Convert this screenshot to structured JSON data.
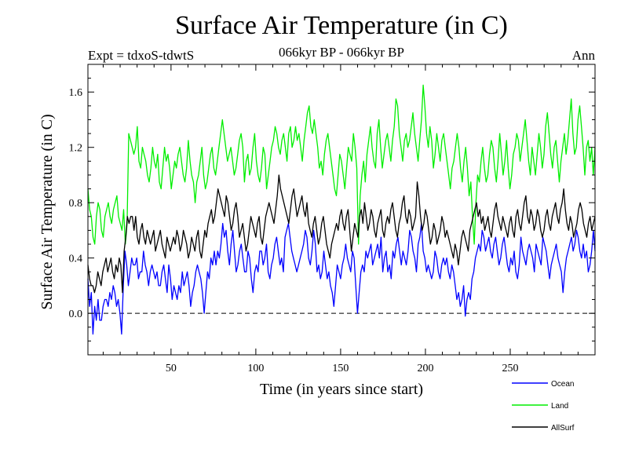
{
  "chart_data": {
    "type": "line",
    "title": "Surface Air Temperature (in C)",
    "subtitle_left": "Expt = tdxoS-tdwtS",
    "subtitle_center": "066kyr BP - 066kyr BP",
    "subtitle_right": "Ann",
    "xlabel": "Time (in years since start)",
    "ylabel": "Surface Air Temperature (in C)",
    "xlim": [
      1,
      300
    ],
    "ylim": [
      -0.3,
      1.8
    ],
    "xticks": [
      50,
      100,
      150,
      200,
      250
    ],
    "yticks": [
      -0.0,
      0.4,
      0.8,
      1.2,
      1.6
    ],
    "ytick_labels": [
      "0.0",
      "0.4",
      "0.8",
      "1.2",
      "1.6"
    ],
    "reference_line": {
      "y": 0.0,
      "style": "dashed"
    },
    "legend_placement": "bottom-right outside",
    "grid": false,
    "series": [
      {
        "name": "Ocean",
        "color": "#0000ff",
        "values": [
          0.25,
          0.05,
          0.15,
          -0.15,
          0.05,
          -0.05,
          0.1,
          -0.05,
          -0.05,
          0.05,
          0.1,
          0.1,
          0.05,
          0.15,
          0.1,
          0.2,
          0.15,
          0.05,
          0.1,
          0.0,
          -0.15,
          0.2,
          0.45,
          0.35,
          0.2,
          0.3,
          0.4,
          0.35,
          0.35,
          0.4,
          0.25,
          0.3,
          0.3,
          0.45,
          0.35,
          0.3,
          0.2,
          0.3,
          0.35,
          0.3,
          0.25,
          0.3,
          0.2,
          0.2,
          0.3,
          0.35,
          0.25,
          0.15,
          0.35,
          0.25,
          0.1,
          0.2,
          0.15,
          0.1,
          0.2,
          0.15,
          0.3,
          0.2,
          0.25,
          0.3,
          0.2,
          0.05,
          0.15,
          0.2,
          0.3,
          0.35,
          0.3,
          0.25,
          0.15,
          0.0,
          0.15,
          0.3,
          0.25,
          0.4,
          0.35,
          0.45,
          0.35,
          0.45,
          0.4,
          0.5,
          0.65,
          0.55,
          0.6,
          0.45,
          0.35,
          0.5,
          0.6,
          0.45,
          0.3,
          0.35,
          0.45,
          0.5,
          0.4,
          0.3,
          0.3,
          0.45,
          0.4,
          0.25,
          0.15,
          0.3,
          0.35,
          0.3,
          0.45,
          0.45,
          0.35,
          0.4,
          0.5,
          0.3,
          0.25,
          0.35,
          0.4,
          0.5,
          0.55,
          0.45,
          0.35,
          0.4,
          0.3,
          0.55,
          0.6,
          0.65,
          0.55,
          0.45,
          0.4,
          0.35,
          0.3,
          0.35,
          0.4,
          0.45,
          0.5,
          0.6,
          0.55,
          0.4,
          0.35,
          0.45,
          0.6,
          0.5,
          0.3,
          0.35,
          0.25,
          0.3,
          0.45,
          0.35,
          0.25,
          0.3,
          0.2,
          0.15,
          0.05,
          0.2,
          0.35,
          0.3,
          0.25,
          0.35,
          0.4,
          0.5,
          0.4,
          0.35,
          0.3,
          0.45,
          0.4,
          0.2,
          0.0,
          0.15,
          0.3,
          0.35,
          0.3,
          0.45,
          0.4,
          0.45,
          0.5,
          0.35,
          0.4,
          0.45,
          0.5,
          0.4,
          0.55,
          0.3,
          0.4,
          0.45,
          0.3,
          0.35,
          0.25,
          0.45,
          0.4,
          0.5,
          0.55,
          0.45,
          0.35,
          0.45,
          0.4,
          0.35,
          0.45,
          0.6,
          0.55,
          0.45,
          0.4,
          0.3,
          0.5,
          0.55,
          0.65,
          0.45,
          0.4,
          0.3,
          0.35,
          0.3,
          0.25,
          0.3,
          0.45,
          0.4,
          0.3,
          0.25,
          0.35,
          0.4,
          0.35,
          0.4,
          0.3,
          0.25,
          0.35,
          0.3,
          0.2,
          0.1,
          0.15,
          0.05,
          0.1,
          0.2,
          -0.02,
          0.1,
          0.15,
          0.1,
          0.25,
          0.3,
          0.4,
          0.45,
          0.5,
          0.45,
          0.6,
          0.55,
          0.45,
          0.5,
          0.55,
          0.45,
          0.4,
          0.5,
          0.55,
          0.45,
          0.35,
          0.4,
          0.5,
          0.55,
          0.45,
          0.35,
          0.3,
          0.4,
          0.35,
          0.45,
          0.3,
          0.25,
          0.35,
          0.55,
          0.45,
          0.4,
          0.35,
          0.45,
          0.5,
          0.45,
          0.4,
          0.3,
          0.5,
          0.45,
          0.4,
          0.35,
          0.55,
          0.5,
          0.45,
          0.35,
          0.25,
          0.35,
          0.4,
          0.45,
          0.5,
          0.4,
          0.35,
          0.3,
          0.15,
          0.3,
          0.4,
          0.45,
          0.5,
          0.55,
          0.45,
          0.5,
          0.6,
          0.55,
          0.45,
          0.4,
          0.5,
          0.4,
          0.45,
          0.3,
          0.35,
          0.45,
          0.6,
          0.45
        ]
      },
      {
        "name": "Land",
        "color": "#00ee00",
        "values": [
          0.9,
          0.75,
          0.7,
          0.55,
          0.5,
          0.7,
          0.8,
          0.75,
          0.6,
          0.55,
          0.7,
          0.75,
          0.8,
          0.7,
          0.65,
          0.75,
          0.8,
          0.85,
          0.7,
          0.65,
          0.6,
          0.75,
          0.5,
          0.65,
          1.3,
          1.25,
          1.2,
          1.15,
          1.2,
          1.35,
          1.1,
          1.05,
          1.2,
          1.15,
          1.1,
          1.0,
          0.95,
          1.05,
          1.2,
          1.1,
          1.05,
          1.15,
          0.95,
          0.9,
          1.05,
          1.2,
          1.1,
          1.15,
          1.05,
          0.9,
          1.0,
          1.1,
          1.05,
          1.15,
          1.2,
          1.1,
          1.0,
          0.95,
          1.05,
          1.25,
          1.1,
          1.0,
          0.95,
          0.8,
          0.95,
          1.0,
          1.1,
          1.2,
          1.0,
          0.9,
          0.95,
          1.05,
          1.15,
          1.2,
          1.05,
          1.0,
          1.1,
          1.2,
          1.3,
          1.4,
          1.3,
          1.2,
          1.1,
          1.15,
          1.2,
          1.1,
          1.0,
          1.05,
          1.15,
          1.25,
          1.3,
          1.2,
          0.95,
          1.1,
          1.15,
          1.0,
          1.05,
          1.2,
          1.3,
          1.1,
          1.0,
          0.95,
          1.05,
          1.2,
          1.15,
          0.9,
          1.0,
          1.1,
          1.2,
          1.25,
          1.35,
          1.3,
          1.2,
          1.15,
          1.25,
          1.3,
          1.2,
          1.1,
          1.3,
          1.35,
          1.2,
          1.25,
          1.35,
          1.25,
          1.3,
          1.2,
          1.1,
          1.25,
          1.35,
          1.45,
          1.5,
          1.35,
          1.3,
          1.4,
          1.3,
          1.2,
          1.05,
          1.1,
          1.0,
          1.15,
          1.25,
          1.3,
          1.2,
          1.1,
          1.0,
          0.9,
          0.85,
          1.0,
          1.15,
          1.1,
          1.0,
          0.9,
          1.05,
          1.2,
          1.15,
          1.1,
          1.3,
          1.2,
          1.05,
          0.5,
          0.85,
          1.0,
          1.1,
          0.95,
          1.15,
          1.25,
          1.35,
          1.2,
          1.1,
          1.05,
          1.3,
          1.4,
          1.2,
          1.05,
          1.15,
          1.25,
          1.3,
          1.2,
          1.1,
          1.25,
          1.35,
          1.55,
          1.5,
          1.3,
          1.2,
          1.1,
          1.25,
          1.3,
          1.2,
          1.25,
          1.35,
          1.45,
          1.3,
          1.2,
          1.1,
          1.25,
          1.4,
          1.65,
          1.5,
          1.3,
          1.2,
          1.35,
          1.25,
          1.05,
          1.15,
          1.3,
          1.2,
          1.1,
          1.25,
          1.3,
          1.2,
          1.1,
          1.0,
          0.9,
          1.05,
          1.1,
          1.2,
          1.3,
          1.2,
          1.05,
          0.95,
          1.1,
          1.2,
          1.05,
          0.85,
          0.95,
          0.7,
          0.5,
          0.8,
          1.0,
          0.95,
          1.1,
          1.2,
          1.05,
          0.95,
          1.0,
          1.15,
          1.25,
          1.2,
          1.05,
          0.95,
          1.1,
          1.3,
          1.15,
          1.0,
          1.1,
          1.25,
          1.05,
          0.9,
          1.0,
          1.15,
          1.2,
          1.3,
          1.25,
          1.1,
          1.2,
          1.3,
          1.4,
          1.25,
          1.1,
          1.0,
          1.2,
          1.1,
          1.0,
          1.15,
          1.3,
          1.2,
          1.05,
          1.15,
          1.35,
          1.45,
          1.3,
          1.15,
          1.05,
          1.2,
          1.25,
          1.1,
          0.95,
          1.1,
          1.2,
          1.3,
          1.15,
          1.25,
          1.4,
          1.55,
          1.3,
          1.15,
          1.2,
          1.4,
          1.5,
          1.35,
          1.2,
          1.0,
          1.2,
          1.25,
          1.1,
          1.2,
          1.0,
          1.2
        ]
      },
      {
        "name": "AllSurf",
        "color": "#000000",
        "values": [
          0.35,
          0.25,
          0.2,
          0.2,
          0.15,
          0.2,
          0.3,
          0.25,
          0.2,
          0.3,
          0.35,
          0.4,
          0.3,
          0.35,
          0.4,
          0.3,
          0.25,
          0.35,
          0.3,
          0.4,
          0.35,
          0.15,
          0.45,
          0.55,
          0.7,
          0.65,
          0.7,
          0.7,
          0.6,
          0.7,
          0.55,
          0.5,
          0.6,
          0.65,
          0.55,
          0.5,
          0.6,
          0.55,
          0.5,
          0.55,
          0.6,
          0.45,
          0.5,
          0.55,
          0.6,
          0.5,
          0.45,
          0.4,
          0.55,
          0.5,
          0.45,
          0.5,
          0.55,
          0.5,
          0.6,
          0.55,
          0.45,
          0.5,
          0.6,
          0.55,
          0.5,
          0.4,
          0.45,
          0.55,
          0.5,
          0.45,
          0.55,
          0.6,
          0.45,
          0.4,
          0.5,
          0.6,
          0.55,
          0.65,
          0.7,
          0.75,
          0.65,
          0.7,
          0.8,
          0.9,
          0.85,
          0.8,
          0.75,
          0.7,
          0.85,
          0.8,
          0.7,
          0.6,
          0.65,
          0.75,
          0.8,
          0.7,
          0.55,
          0.6,
          0.65,
          0.55,
          0.45,
          0.5,
          0.6,
          0.7,
          0.65,
          0.6,
          0.55,
          0.65,
          0.7,
          0.55,
          0.5,
          0.6,
          0.7,
          0.75,
          0.8,
          0.75,
          0.7,
          0.65,
          0.75,
          0.85,
          1.0,
          0.9,
          0.85,
          0.8,
          0.75,
          0.7,
          0.65,
          0.75,
          0.85,
          0.9,
          0.8,
          0.7,
          0.75,
          0.8,
          0.85,
          0.75,
          0.7,
          0.8,
          0.65,
          0.6,
          0.55,
          0.65,
          0.7,
          0.6,
          0.5,
          0.55,
          0.65,
          0.7,
          0.6,
          0.5,
          0.45,
          0.4,
          0.5,
          0.55,
          0.6,
          0.65,
          0.6,
          0.7,
          0.75,
          0.65,
          0.6,
          0.7,
          0.75,
          0.6,
          0.45,
          0.55,
          0.65,
          0.6,
          0.55,
          0.7,
          0.75,
          0.65,
          0.8,
          0.7,
          0.6,
          0.65,
          0.75,
          0.7,
          0.6,
          0.55,
          0.65,
          0.7,
          0.75,
          0.6,
          0.55,
          0.65,
          0.7,
          0.65,
          0.75,
          0.8,
          0.7,
          0.6,
          0.55,
          0.65,
          0.7,
          0.8,
          0.85,
          0.7,
          0.65,
          0.75,
          0.7,
          0.6,
          0.65,
          0.7,
          0.95,
          0.85,
          0.7,
          0.6,
          0.65,
          0.75,
          0.7,
          0.6,
          0.5,
          0.55,
          0.65,
          0.6,
          0.5,
          0.55,
          0.6,
          0.7,
          0.65,
          0.55,
          0.6,
          0.55,
          0.5,
          0.45,
          0.4,
          0.5,
          0.45,
          0.35,
          0.45,
          0.55,
          0.6,
          0.55,
          0.5,
          0.45,
          0.6,
          0.65,
          0.7,
          0.75,
          0.8,
          0.7,
          0.75,
          0.65,
          0.7,
          0.6,
          0.65,
          0.7,
          0.6,
          0.55,
          0.65,
          0.75,
          0.8,
          0.7,
          0.65,
          0.6,
          0.7,
          0.65,
          0.6,
          0.55,
          0.65,
          0.7,
          0.6,
          0.55,
          0.7,
          0.75,
          0.65,
          0.6,
          0.7,
          0.8,
          0.85,
          0.7,
          0.65,
          0.75,
          0.7,
          0.6,
          0.65,
          0.75,
          0.7,
          0.6,
          0.55,
          0.6,
          0.7,
          0.75,
          0.65,
          0.6,
          0.7,
          0.75,
          0.8,
          0.7,
          0.65,
          0.75,
          0.8,
          0.9,
          0.75,
          0.65,
          0.6,
          0.7,
          0.65,
          0.55,
          0.6,
          0.65,
          0.75,
          0.8,
          0.75,
          0.65,
          0.6,
          0.55,
          0.65,
          0.7,
          0.6,
          0.65,
          0.7
        ]
      }
    ]
  }
}
